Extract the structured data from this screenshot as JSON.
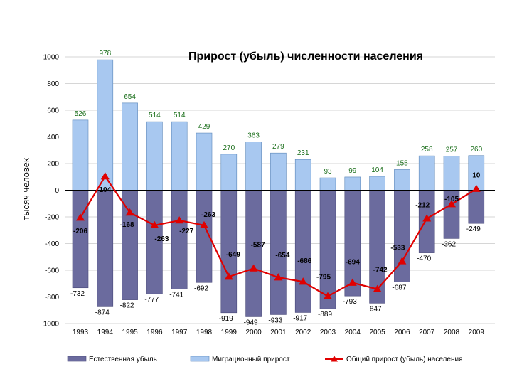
{
  "chart_data": {
    "type": "bar",
    "title": "Прирост (убыль) численности населения",
    "ylabel": "тысяч человек",
    "ylim": [
      -1000,
      1000
    ],
    "yticks": [
      1000,
      800,
      600,
      400,
      200,
      0,
      -200,
      -400,
      -600,
      -800,
      -1000
    ],
    "categories": [
      "1993",
      "1994",
      "1995",
      "1996",
      "1997",
      "1998",
      "1999",
      "2000",
      "2001",
      "2002",
      "2003",
      "2004",
      "2005",
      "2006",
      "2007",
      "2008",
      "2009"
    ],
    "grid": true,
    "legend_position": "bottom",
    "series": [
      {
        "name": "Естественная убыль",
        "type": "bar",
        "color": "#6b6b9e",
        "values": [
          -732,
          -874,
          -822,
          -777,
          -741,
          -692,
          -919,
          -949,
          -933,
          -917,
          -889,
          -793,
          -847,
          -687,
          -470,
          -362,
          -249
        ]
      },
      {
        "name": "Миграционный прирост",
        "type": "bar",
        "color": "#a8c8f0",
        "values": [
          526,
          978,
          654,
          514,
          514,
          429,
          270,
          363,
          279,
          231,
          93,
          99,
          104,
          155,
          258,
          257,
          260
        ]
      },
      {
        "name": "Общий прирост (убыль) населения",
        "type": "line",
        "color": "#e00000",
        "values": [
          -206,
          104,
          -168,
          -263,
          -227,
          -263,
          -649,
          -587,
          -654,
          -686,
          -795,
          -694,
          -742,
          -533,
          -212,
          -105,
          10
        ]
      }
    ]
  }
}
